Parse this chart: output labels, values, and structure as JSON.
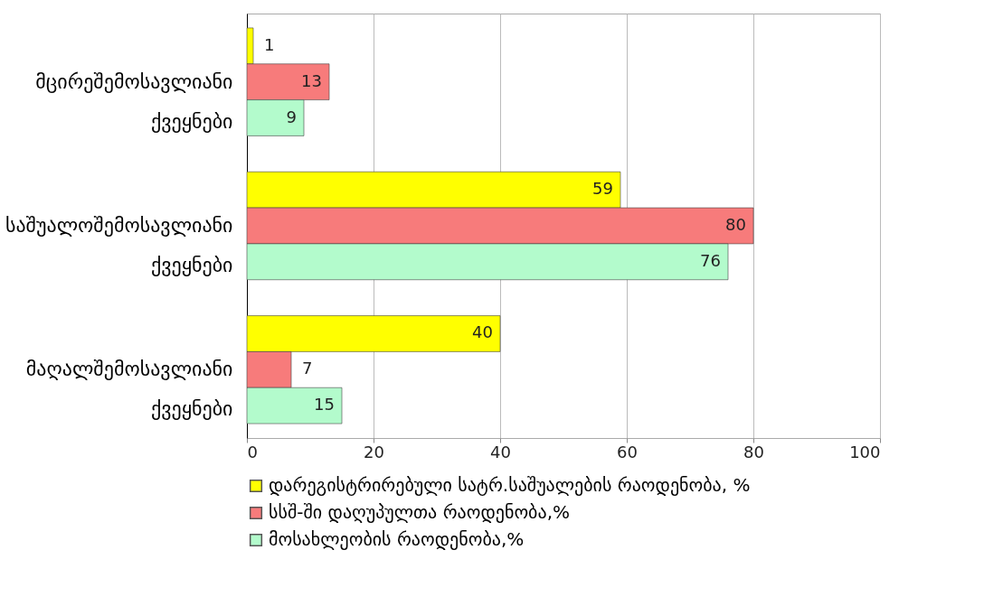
{
  "chart_data": {
    "type": "bar",
    "orientation": "horizontal",
    "categories": [
      "მცირეშემოსავლიანი ქვეყნები",
      "საშუალოშემოსავლიანი ქვეყნები",
      "მაღალშემოსავლიანი ქვეყნები"
    ],
    "series": [
      {
        "name": "დარეგისტრირებული სატრ.საშუალების რაოდენობა, %",
        "color": "#ffff00",
        "values": [
          1,
          59,
          40
        ]
      },
      {
        "name": "სსშ-ში დაღუპულთა რაოდენობა,%",
        "color": "#f77b7b",
        "values": [
          13,
          80,
          7
        ]
      },
      {
        "name": "მოსახლეობის რაოდენობა,%",
        "color": "#b3fbcc",
        "values": [
          9,
          76,
          15
        ]
      }
    ],
    "xlim": [
      0,
      100
    ],
    "xticks": [
      0,
      20,
      40,
      60,
      80,
      100
    ],
    "grid": "x",
    "legend": "bottom",
    "data_labels": true
  }
}
